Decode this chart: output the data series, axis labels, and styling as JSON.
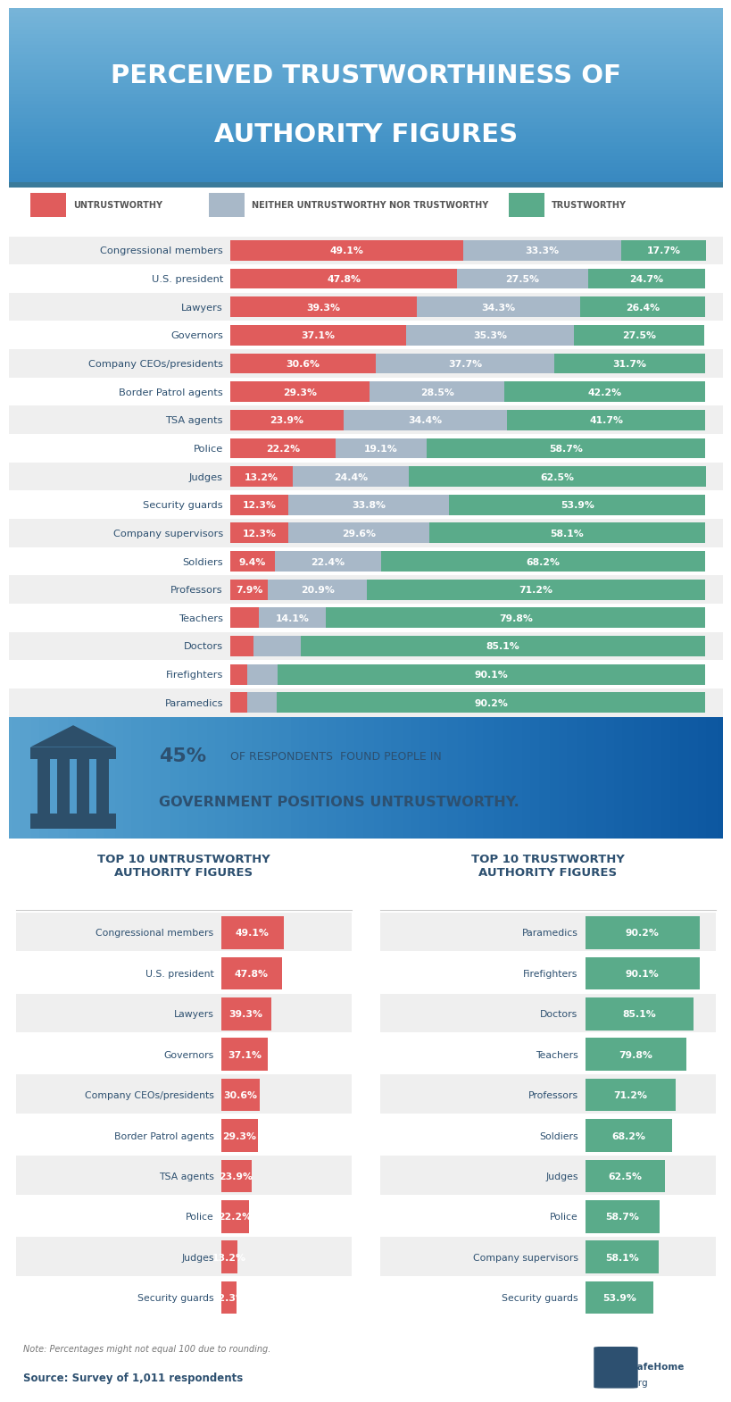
{
  "title_line1": "PERCEIVED TRUSTWORTHINESS OF",
  "title_line2": "AUTHORITY FIGURES",
  "title_bg_top": "#1a3d52",
  "title_bg_bottom": "#2d6b8a",
  "title_color": "#ffffff",
  "legend_untrustworthy": "UNTRUSTWORTHY",
  "legend_neither": "NEITHER UNTRUSTWORTHY NOR TRUSTWORTHY",
  "legend_trustworthy": "TRUSTWORTHY",
  "color_untrustworthy": "#e05c5c",
  "color_neither": "#a8b8c8",
  "color_trustworthy": "#5aab8a",
  "bg_color": "#ffffff",
  "bar_bg_even": "#efefef",
  "bar_bg_odd": "#ffffff",
  "categories": [
    "Congressional members",
    "U.S. president",
    "Lawyers",
    "Governors",
    "Company CEOs/presidents",
    "Border Patrol agents",
    "TSA agents",
    "Police",
    "Judges",
    "Security guards",
    "Company supervisors",
    "Soldiers",
    "Professors",
    "Teachers",
    "Doctors",
    "Firefighters",
    "Paramedics"
  ],
  "untrustworthy": [
    49.1,
    47.8,
    39.3,
    37.1,
    30.6,
    29.3,
    23.9,
    22.2,
    13.2,
    12.3,
    12.3,
    9.4,
    7.9,
    6.1,
    4.8,
    3.6,
    3.5
  ],
  "neither": [
    33.3,
    27.5,
    34.3,
    35.3,
    37.7,
    28.5,
    34.4,
    19.1,
    24.4,
    33.8,
    29.6,
    22.4,
    20.9,
    14.1,
    10.1,
    6.3,
    6.3
  ],
  "trustworthy": [
    17.7,
    24.7,
    26.4,
    27.5,
    31.7,
    42.2,
    41.7,
    58.7,
    62.5,
    53.9,
    58.1,
    68.2,
    71.2,
    79.8,
    85.1,
    90.1,
    90.2
  ],
  "untrustworthy_labels": [
    "49.1%",
    "47.8%",
    "39.3%",
    "37.1%",
    "30.6%",
    "29.3%",
    "23.9%",
    "22.2%",
    "13.2%",
    "12.3%",
    "12.3%",
    "9.4%",
    "7.9%",
    "",
    "",
    "",
    ""
  ],
  "neither_labels": [
    "33.3%",
    "27.5%",
    "34.3%",
    "35.3%",
    "37.7%",
    "28.5%",
    "34.4%",
    "19.1%",
    "24.4%",
    "33.8%",
    "29.6%",
    "22.4%",
    "20.9%",
    "14.1%",
    "",
    "",
    ""
  ],
  "trustworthy_labels": [
    "17.7%",
    "24.7%",
    "26.4%",
    "27.5%",
    "31.7%",
    "42.2%",
    "41.7%",
    "58.7%",
    "62.5%",
    "53.9%",
    "58.1%",
    "68.2%",
    "71.2%",
    "79.8%",
    "85.1%",
    "90.1%",
    "90.2%"
  ],
  "callout_bg_top": "#b8ccd8",
  "callout_bg_bottom": "#d8e8f0",
  "callout_text_pct": "45%",
  "callout_text_line1": " OF RESPONDENTS  FOUND PEOPLE IN",
  "callout_text_line2": "GOVERNMENT POSITIONS UNTRUSTWORTHY.",
  "icon_color": "#2d4f6a",
  "top10_untrustworthy_cats": [
    "Congressional members",
    "U.S. president",
    "Lawyers",
    "Governors",
    "Company CEOs/presidents",
    "Border Patrol agents",
    "TSA agents",
    "Police",
    "Judges",
    "Security guards"
  ],
  "top10_untrustworthy_vals": [
    49.1,
    47.8,
    39.3,
    37.1,
    30.6,
    29.3,
    23.9,
    22.2,
    13.2,
    12.3
  ],
  "top10_trustworthy_cats": [
    "Paramedics",
    "Firefighters",
    "Doctors",
    "Teachers",
    "Professors",
    "Soldiers",
    "Judges",
    "Police",
    "Company supervisors",
    "Security guards"
  ],
  "top10_trustworthy_vals": [
    90.2,
    90.1,
    85.1,
    79.8,
    71.2,
    68.2,
    62.5,
    58.7,
    58.1,
    53.9
  ],
  "note": "Note: Percentages might not equal 100 due to rounding.",
  "source": "Source: Survey of 1,011 respondents",
  "text_color_dark": "#2d5070",
  "divider_color": "#cccccc"
}
